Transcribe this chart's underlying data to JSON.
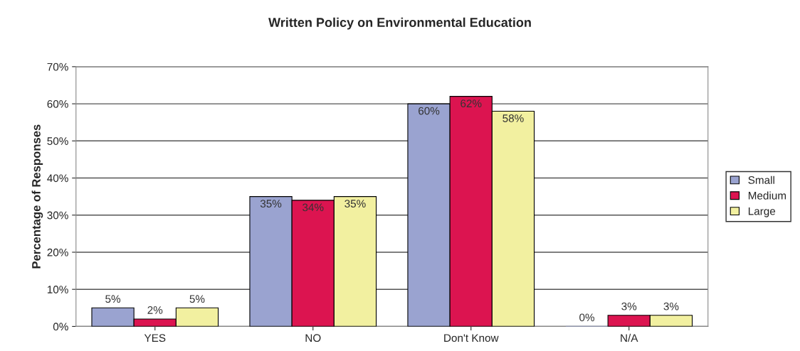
{
  "chart_data": {
    "type": "bar",
    "title": "Written Policy on Environmental Education",
    "ylabel": "Percentage of Responses",
    "categories": [
      "YES",
      "NO",
      "Don't Know",
      "N/A"
    ],
    "series": [
      {
        "name": "Small",
        "color": "#9aa3d0",
        "values": [
          5,
          35,
          60,
          0
        ],
        "value_labels": [
          "5%",
          "35%",
          "60%",
          "0%"
        ]
      },
      {
        "name": "Medium",
        "color": "#dc1450",
        "values": [
          2,
          34,
          62,
          3
        ],
        "value_labels": [
          "2%",
          "34%",
          "62%",
          "3%"
        ]
      },
      {
        "name": "Large",
        "color": "#f2f0a0",
        "values": [
          5,
          35,
          58,
          3
        ],
        "value_labels": [
          "5%",
          "35%",
          "58%",
          "3%"
        ]
      }
    ],
    "ylim": [
      0,
      70
    ],
    "yticks": [
      {
        "value": 0,
        "label": "0%"
      },
      {
        "value": 10,
        "label": "10%"
      },
      {
        "value": 20,
        "label": "20%"
      },
      {
        "value": 30,
        "label": "30%"
      },
      {
        "value": 40,
        "label": "40%"
      },
      {
        "value": 50,
        "label": "50%"
      },
      {
        "value": 60,
        "label": "60%"
      },
      {
        "value": 70,
        "label": "70%"
      }
    ],
    "grid": "y",
    "legend": "right"
  }
}
